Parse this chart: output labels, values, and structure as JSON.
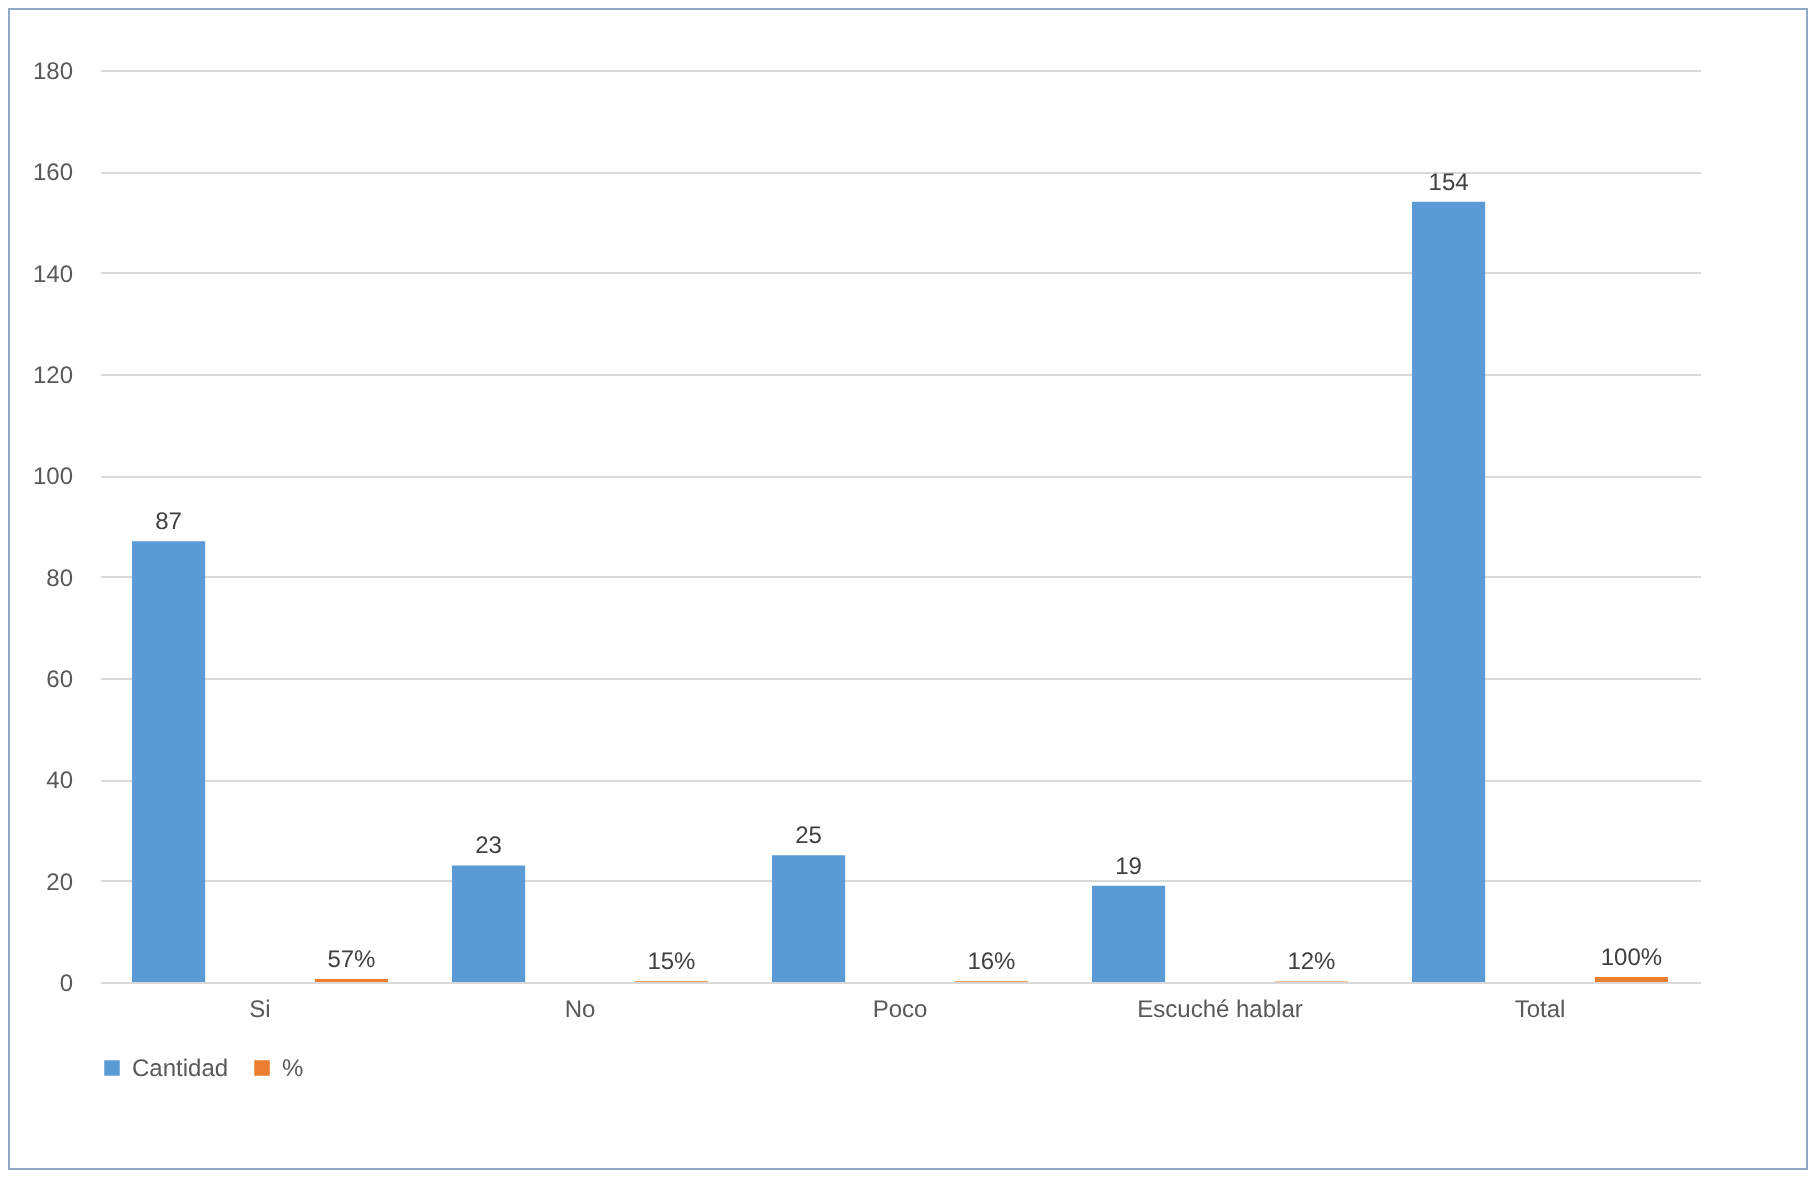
{
  "chart_data": {
    "type": "bar",
    "categories": [
      "Si",
      "No",
      "Poco",
      "Escuché hablar",
      "Total"
    ],
    "series": [
      {
        "name": "Cantidad",
        "color": "#5b9bd5",
        "values": [
          87,
          23,
          25,
          19,
          154
        ],
        "value_labels": [
          "87",
          "23",
          "25",
          "19",
          "154"
        ]
      },
      {
        "name": "%",
        "color": "#ed7d31",
        "values": [
          0.57,
          0.15,
          0.16,
          0.12,
          1
        ],
        "value_labels": [
          "57%",
          "15%",
          "16%",
          "12%",
          "100%"
        ]
      }
    ],
    "ylim": [
      0,
      180
    ],
    "yticks": [
      0,
      20,
      40,
      60,
      80,
      100,
      120,
      140,
      160,
      180
    ],
    "grid": "y",
    "legend": "bottom"
  }
}
